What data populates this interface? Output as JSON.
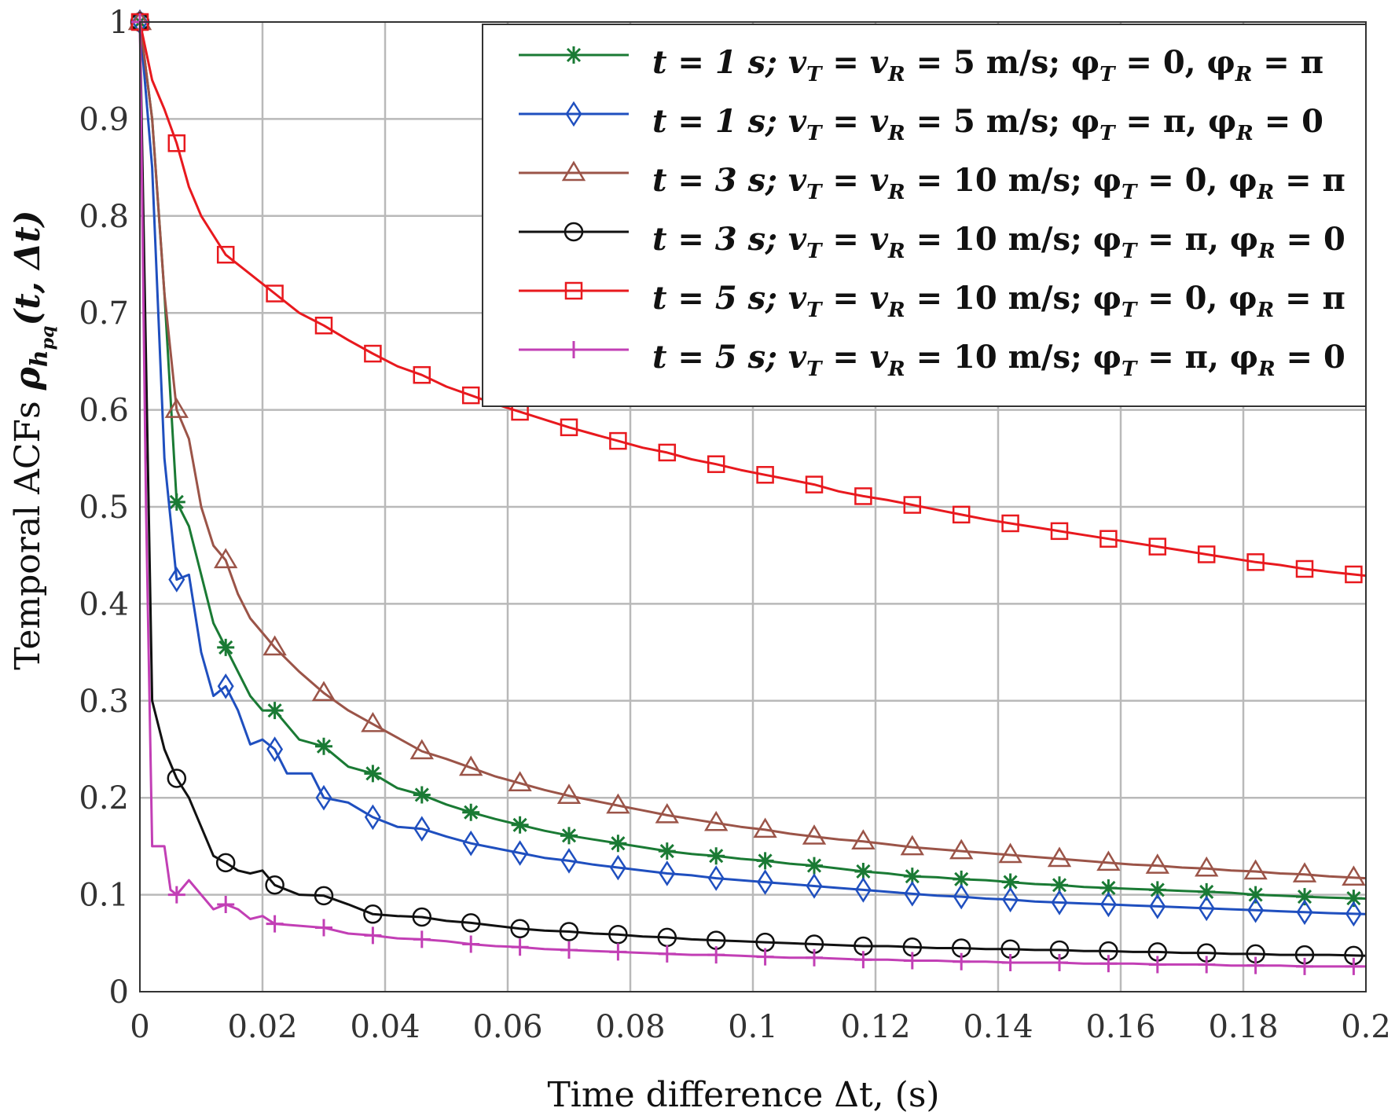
{
  "chart_data": {
    "type": "line",
    "title": "",
    "xlabel": "Time difference  Δt, (s)",
    "ylabel": "Temporal ACFs ρ_{h_pq}(t, Δt)",
    "xlim": [
      0,
      0.2
    ],
    "ylim": [
      0,
      1
    ],
    "grid": true,
    "legend_position": "top-right",
    "x_ticks": [
      0,
      0.02,
      0.04,
      0.06,
      0.08,
      0.1,
      0.12,
      0.14,
      0.16,
      0.18,
      0.2
    ],
    "x_tick_labels": [
      "0",
      "0.02",
      "0.04",
      "0.06",
      "0.08",
      "0.1",
      "0.12",
      "0.14",
      "0.16",
      "0.18",
      "0.2"
    ],
    "y_ticks": [
      0,
      0.1,
      0.2,
      0.3,
      0.4,
      0.5,
      0.6,
      0.7,
      0.8,
      0.9,
      1
    ],
    "y_tick_labels": [
      "0",
      "0.1",
      "0.2",
      "0.3",
      "0.4",
      "0.5",
      "0.6",
      "0.7",
      "0.8",
      "0.9",
      "1"
    ],
    "series": [
      {
        "name": "t = 1 s; v_T = v_R = 5 m/s; φ_T = 0,  φ_R = π",
        "color": "#1a7a34",
        "marker": "asterisk",
        "x": [
          0,
          0.002,
          0.004,
          0.006,
          0.008,
          0.01,
          0.012,
          0.014,
          0.016,
          0.018,
          0.02,
          0.022,
          0.026,
          0.03,
          0.034,
          0.038,
          0.042,
          0.046,
          0.05,
          0.054,
          0.058,
          0.062,
          0.066,
          0.07,
          0.074,
          0.078,
          0.082,
          0.086,
          0.09,
          0.094,
          0.098,
          0.102,
          0.106,
          0.11,
          0.114,
          0.118,
          0.122,
          0.126,
          0.13,
          0.134,
          0.138,
          0.142,
          0.146,
          0.15,
          0.154,
          0.158,
          0.162,
          0.166,
          0.17,
          0.174,
          0.178,
          0.182,
          0.186,
          0.19,
          0.194,
          0.2
        ],
        "y": [
          1,
          0.9,
          0.72,
          0.505,
          0.48,
          0.43,
          0.38,
          0.355,
          0.33,
          0.305,
          0.29,
          0.29,
          0.26,
          0.253,
          0.232,
          0.225,
          0.21,
          0.203,
          0.193,
          0.185,
          0.178,
          0.172,
          0.166,
          0.161,
          0.157,
          0.153,
          0.149,
          0.145,
          0.142,
          0.14,
          0.137,
          0.135,
          0.132,
          0.13,
          0.127,
          0.124,
          0.122,
          0.119,
          0.118,
          0.116,
          0.115,
          0.113,
          0.111,
          0.11,
          0.108,
          0.107,
          0.106,
          0.105,
          0.104,
          0.103,
          0.102,
          0.1,
          0.099,
          0.098,
          0.097,
          0.096
        ],
        "marker_x": [
          0,
          0.006,
          0.014,
          0.022,
          0.03,
          0.038,
          0.046,
          0.054,
          0.062,
          0.07,
          0.078,
          0.086,
          0.094,
          0.102,
          0.11,
          0.118,
          0.126,
          0.134,
          0.142,
          0.15,
          0.158,
          0.166,
          0.174,
          0.182,
          0.19,
          0.198
        ]
      },
      {
        "name": "t = 1 s; v_T = v_R = 5 m/s; φ_T = π,  φ_R = 0",
        "color": "#1f4fbf",
        "marker": "diamond",
        "x": [
          0,
          0.002,
          0.004,
          0.006,
          0.008,
          0.01,
          0.012,
          0.014,
          0.016,
          0.018,
          0.02,
          0.022,
          0.024,
          0.026,
          0.028,
          0.03,
          0.034,
          0.038,
          0.042,
          0.046,
          0.05,
          0.054,
          0.058,
          0.062,
          0.066,
          0.07,
          0.074,
          0.078,
          0.082,
          0.086,
          0.09,
          0.094,
          0.098,
          0.102,
          0.106,
          0.11,
          0.114,
          0.118,
          0.122,
          0.126,
          0.13,
          0.134,
          0.138,
          0.142,
          0.146,
          0.15,
          0.154,
          0.158,
          0.162,
          0.166,
          0.17,
          0.174,
          0.178,
          0.182,
          0.186,
          0.19,
          0.194,
          0.2
        ],
        "y": [
          1,
          0.85,
          0.55,
          0.425,
          0.43,
          0.35,
          0.305,
          0.315,
          0.29,
          0.255,
          0.26,
          0.25,
          0.225,
          0.225,
          0.225,
          0.2,
          0.195,
          0.18,
          0.17,
          0.168,
          0.16,
          0.153,
          0.148,
          0.143,
          0.138,
          0.135,
          0.131,
          0.128,
          0.125,
          0.122,
          0.12,
          0.117,
          0.115,
          0.113,
          0.111,
          0.109,
          0.107,
          0.105,
          0.103,
          0.101,
          0.099,
          0.098,
          0.096,
          0.095,
          0.093,
          0.092,
          0.091,
          0.09,
          0.089,
          0.088,
          0.087,
          0.086,
          0.085,
          0.084,
          0.083,
          0.082,
          0.081,
          0.08
        ],
        "marker_x": [
          0,
          0.006,
          0.014,
          0.022,
          0.03,
          0.038,
          0.046,
          0.054,
          0.062,
          0.07,
          0.078,
          0.086,
          0.094,
          0.102,
          0.11,
          0.118,
          0.126,
          0.134,
          0.142,
          0.15,
          0.158,
          0.166,
          0.174,
          0.182,
          0.19,
          0.198
        ]
      },
      {
        "name": "t = 3 s; v_T = v_R = 10 m/s; φ_T = 0,  φ_R = π",
        "color": "#9b5448",
        "marker": "triangle",
        "x": [
          0,
          0.002,
          0.004,
          0.006,
          0.008,
          0.01,
          0.012,
          0.014,
          0.016,
          0.018,
          0.02,
          0.022,
          0.026,
          0.03,
          0.034,
          0.038,
          0.042,
          0.046,
          0.05,
          0.054,
          0.058,
          0.062,
          0.066,
          0.07,
          0.074,
          0.078,
          0.082,
          0.086,
          0.09,
          0.094,
          0.098,
          0.102,
          0.106,
          0.11,
          0.114,
          0.118,
          0.122,
          0.126,
          0.13,
          0.134,
          0.138,
          0.142,
          0.146,
          0.15,
          0.154,
          0.158,
          0.162,
          0.166,
          0.17,
          0.174,
          0.178,
          0.182,
          0.186,
          0.19,
          0.194,
          0.2
        ],
        "y": [
          1,
          0.9,
          0.72,
          0.6,
          0.57,
          0.5,
          0.46,
          0.445,
          0.41,
          0.385,
          0.37,
          0.355,
          0.33,
          0.308,
          0.29,
          0.276,
          0.262,
          0.248,
          0.24,
          0.231,
          0.222,
          0.215,
          0.208,
          0.202,
          0.197,
          0.192,
          0.187,
          0.182,
          0.178,
          0.174,
          0.17,
          0.167,
          0.163,
          0.16,
          0.157,
          0.155,
          0.152,
          0.149,
          0.147,
          0.145,
          0.143,
          0.141,
          0.139,
          0.137,
          0.135,
          0.133,
          0.131,
          0.13,
          0.128,
          0.127,
          0.125,
          0.124,
          0.122,
          0.121,
          0.119,
          0.117
        ],
        "marker_x": [
          0,
          0.006,
          0.014,
          0.022,
          0.03,
          0.038,
          0.046,
          0.054,
          0.062,
          0.07,
          0.078,
          0.086,
          0.094,
          0.102,
          0.11,
          0.118,
          0.126,
          0.134,
          0.142,
          0.15,
          0.158,
          0.166,
          0.174,
          0.182,
          0.19,
          0.198
        ]
      },
      {
        "name": "t = 3 s; v_T = v_R = 10 m/s; φ_T = π,  φ_R = 0",
        "color": "#111111",
        "marker": "circle",
        "x": [
          0,
          0.002,
          0.004,
          0.006,
          0.008,
          0.01,
          0.012,
          0.014,
          0.016,
          0.018,
          0.02,
          0.022,
          0.026,
          0.03,
          0.034,
          0.038,
          0.042,
          0.046,
          0.05,
          0.054,
          0.058,
          0.062,
          0.066,
          0.07,
          0.074,
          0.078,
          0.082,
          0.086,
          0.09,
          0.094,
          0.098,
          0.102,
          0.106,
          0.11,
          0.114,
          0.118,
          0.122,
          0.126,
          0.13,
          0.134,
          0.138,
          0.142,
          0.146,
          0.15,
          0.154,
          0.158,
          0.162,
          0.166,
          0.17,
          0.174,
          0.178,
          0.182,
          0.186,
          0.19,
          0.194,
          0.2
        ],
        "y": [
          1,
          0.3,
          0.25,
          0.22,
          0.2,
          0.17,
          0.14,
          0.133,
          0.125,
          0.122,
          0.125,
          0.11,
          0.1,
          0.099,
          0.09,
          0.08,
          0.078,
          0.077,
          0.073,
          0.071,
          0.068,
          0.065,
          0.063,
          0.062,
          0.06,
          0.059,
          0.057,
          0.056,
          0.054,
          0.053,
          0.052,
          0.051,
          0.05,
          0.049,
          0.048,
          0.047,
          0.047,
          0.046,
          0.045,
          0.045,
          0.044,
          0.044,
          0.043,
          0.043,
          0.042,
          0.042,
          0.041,
          0.041,
          0.04,
          0.04,
          0.039,
          0.039,
          0.038,
          0.038,
          0.038,
          0.037
        ],
        "marker_x": [
          0,
          0.006,
          0.014,
          0.022,
          0.03,
          0.038,
          0.046,
          0.054,
          0.062,
          0.07,
          0.078,
          0.086,
          0.094,
          0.102,
          0.11,
          0.118,
          0.126,
          0.134,
          0.142,
          0.15,
          0.158,
          0.166,
          0.174,
          0.182,
          0.19,
          0.198
        ]
      },
      {
        "name": "t = 5 s; v_T = v_R = 10 m/s; φ_T = 0,  φ_R = π",
        "color": "#e8191e",
        "marker": "square",
        "x": [
          0,
          0.002,
          0.004,
          0.006,
          0.008,
          0.01,
          0.012,
          0.014,
          0.018,
          0.022,
          0.026,
          0.03,
          0.034,
          0.038,
          0.042,
          0.046,
          0.05,
          0.054,
          0.058,
          0.062,
          0.066,
          0.07,
          0.074,
          0.078,
          0.082,
          0.086,
          0.09,
          0.094,
          0.098,
          0.102,
          0.106,
          0.11,
          0.114,
          0.118,
          0.122,
          0.126,
          0.13,
          0.134,
          0.138,
          0.142,
          0.146,
          0.15,
          0.154,
          0.158,
          0.162,
          0.166,
          0.17,
          0.174,
          0.178,
          0.182,
          0.186,
          0.19,
          0.194,
          0.2
        ],
        "y": [
          1,
          0.94,
          0.91,
          0.875,
          0.83,
          0.8,
          0.78,
          0.76,
          0.74,
          0.72,
          0.7,
          0.687,
          0.672,
          0.658,
          0.645,
          0.636,
          0.624,
          0.615,
          0.606,
          0.598,
          0.59,
          0.582,
          0.575,
          0.568,
          0.561,
          0.556,
          0.549,
          0.544,
          0.538,
          0.533,
          0.528,
          0.523,
          0.516,
          0.511,
          0.507,
          0.502,
          0.497,
          0.492,
          0.487,
          0.483,
          0.479,
          0.475,
          0.471,
          0.467,
          0.463,
          0.459,
          0.455,
          0.451,
          0.447,
          0.443,
          0.44,
          0.436,
          0.433,
          0.429
        ],
        "marker_x": [
          0,
          0.006,
          0.014,
          0.022,
          0.03,
          0.038,
          0.046,
          0.054,
          0.062,
          0.07,
          0.078,
          0.086,
          0.094,
          0.102,
          0.11,
          0.118,
          0.126,
          0.134,
          0.142,
          0.15,
          0.158,
          0.166,
          0.174,
          0.182,
          0.19,
          0.198
        ]
      },
      {
        "name": "t = 5 s; v_T = v_R = 10 m/s; φ_T = π,  φ_R = 0",
        "color": "#c23fb5",
        "marker": "plus",
        "x": [
          0,
          0.001,
          0.002,
          0.003,
          0.004,
          0.005,
          0.006,
          0.008,
          0.01,
          0.012,
          0.014,
          0.016,
          0.018,
          0.02,
          0.022,
          0.026,
          0.03,
          0.034,
          0.038,
          0.042,
          0.046,
          0.05,
          0.054,
          0.058,
          0.062,
          0.066,
          0.07,
          0.074,
          0.078,
          0.082,
          0.086,
          0.09,
          0.094,
          0.098,
          0.102,
          0.106,
          0.11,
          0.114,
          0.118,
          0.122,
          0.126,
          0.13,
          0.134,
          0.138,
          0.142,
          0.146,
          0.15,
          0.154,
          0.158,
          0.162,
          0.166,
          0.17,
          0.174,
          0.178,
          0.182,
          0.186,
          0.19,
          0.194,
          0.2
        ],
        "y": [
          1,
          0.5,
          0.15,
          0.15,
          0.15,
          0.105,
          0.1,
          0.115,
          0.1,
          0.085,
          0.09,
          0.085,
          0.075,
          0.078,
          0.07,
          0.068,
          0.066,
          0.06,
          0.058,
          0.055,
          0.054,
          0.052,
          0.049,
          0.047,
          0.046,
          0.044,
          0.043,
          0.042,
          0.041,
          0.04,
          0.039,
          0.038,
          0.038,
          0.037,
          0.036,
          0.035,
          0.035,
          0.034,
          0.033,
          0.033,
          0.032,
          0.032,
          0.031,
          0.031,
          0.03,
          0.03,
          0.03,
          0.029,
          0.029,
          0.029,
          0.028,
          0.028,
          0.028,
          0.027,
          0.027,
          0.027,
          0.026,
          0.026,
          0.026
        ],
        "marker_x": [
          0,
          0.006,
          0.014,
          0.022,
          0.03,
          0.038,
          0.046,
          0.054,
          0.062,
          0.07,
          0.078,
          0.086,
          0.094,
          0.102,
          0.11,
          0.118,
          0.126,
          0.134,
          0.142,
          0.15,
          0.158,
          0.166,
          0.174,
          0.182,
          0.19,
          0.198
        ]
      }
    ]
  },
  "legend": {
    "entries": [
      {
        "t": "t = 1 s; ",
        "v": "v",
        "vsub1": "T",
        "eq1": " = v",
        "vsub2": "R",
        "rest": " = 5 m/s; φ",
        "phisub1": "T",
        "phival1": " = 0,  φ",
        "phisub2": "R",
        "phival2": " = π"
      },
      {
        "t": "t = 1 s; ",
        "v": "v",
        "vsub1": "T",
        "eq1": " = v",
        "vsub2": "R",
        "rest": " = 5 m/s; φ",
        "phisub1": "T",
        "phival1": " = π,  φ",
        "phisub2": "R",
        "phival2": " = 0"
      },
      {
        "t": "t = 3 s; ",
        "v": "v",
        "vsub1": "T",
        "eq1": " = v",
        "vsub2": "R",
        "rest": " = 10 m/s; φ",
        "phisub1": "T",
        "phival1": " = 0,  φ",
        "phisub2": "R",
        "phival2": " = π"
      },
      {
        "t": "t = 3 s; ",
        "v": "v",
        "vsub1": "T",
        "eq1": " = v",
        "vsub2": "R",
        "rest": " = 10 m/s; φ",
        "phisub1": "T",
        "phival1": " = π,  φ",
        "phisub2": "R",
        "phival2": " = 0"
      },
      {
        "t": "t = 5 s; ",
        "v": "v",
        "vsub1": "T",
        "eq1": " = v",
        "vsub2": "R",
        "rest": " = 10 m/s; φ",
        "phisub1": "T",
        "phival1": " = 0,  φ",
        "phisub2": "R",
        "phival2": " = π"
      },
      {
        "t": "t = 5 s; ",
        "v": "v",
        "vsub1": "T",
        "eq1": " = v",
        "vsub2": "R",
        "rest": " = 10 m/s; φ",
        "phisub1": "T",
        "phival1": " = π,  φ",
        "phisub2": "R",
        "phival2": " = 0"
      }
    ]
  },
  "axes": {
    "xlabel_text": "Time difference  Δt, (s)",
    "ylabel_prefix": "Temporal ACFs ",
    "ylabel_rho": "ρ",
    "ylabel_sub": "h",
    "ylabel_subsub": "pq",
    "ylabel_args": "(t, Δt)"
  }
}
